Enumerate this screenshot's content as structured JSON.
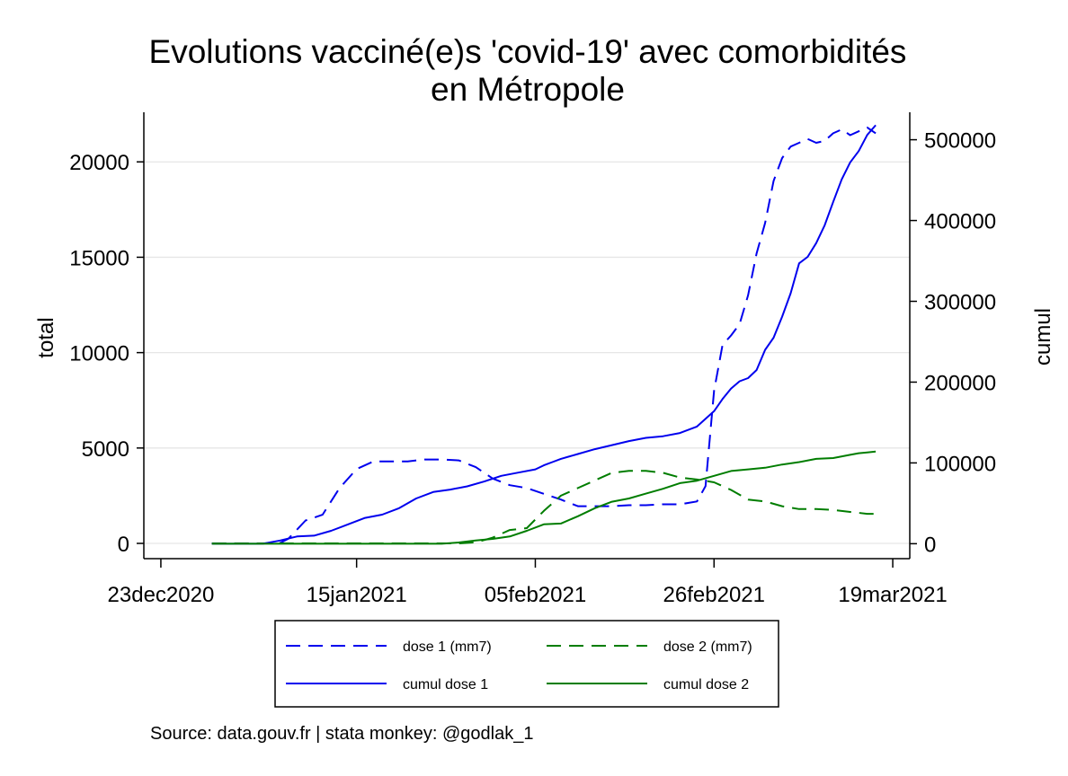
{
  "chart_data": {
    "type": "line",
    "title_lines": [
      "Evolutions vacciné(e)s 'covid-19' avec comorbidités",
      "en Métropole"
    ],
    "ylabel_left": "total",
    "ylabel_right": "cumul",
    "x_ticks": [
      "23dec2020",
      "15jan2021",
      "05feb2021",
      "26feb2021",
      "19mar2021"
    ],
    "x_tick_dates": [
      "2020-12-23",
      "2021-01-15",
      "2021-02-05",
      "2021-02-26",
      "2021-03-19"
    ],
    "xlim": [
      "2020-12-21",
      "2021-03-21"
    ],
    "y_left_ticks": [
      0,
      5000,
      10000,
      15000,
      20000
    ],
    "y_left_lim": [
      -800,
      22600
    ],
    "y_right_ticks": [
      0,
      100000,
      200000,
      300000,
      400000,
      500000
    ],
    "y_right_lim": [
      -18500,
      534000
    ],
    "grid": true,
    "legend_position": "bottom",
    "series": [
      {
        "name": "dose 1 (mm7)",
        "axis": "left",
        "style": "dashed",
        "color": "#0000ee",
        "x": [
          "2020-12-29",
          "2021-01-01",
          "2021-01-04",
          "2021-01-06",
          "2021-01-07",
          "2021-01-09",
          "2021-01-11",
          "2021-01-13",
          "2021-01-15",
          "2021-01-17",
          "2021-01-19",
          "2021-01-21",
          "2021-01-23",
          "2021-01-25",
          "2021-01-27",
          "2021-01-29",
          "2021-01-31",
          "2021-02-02",
          "2021-02-04",
          "2021-02-06",
          "2021-02-08",
          "2021-02-10",
          "2021-02-12",
          "2021-02-14",
          "2021-02-16",
          "2021-02-18",
          "2021-02-20",
          "2021-02-22",
          "2021-02-24",
          "2021-02-25",
          "2021-02-26",
          "2021-02-27",
          "2021-02-28",
          "2021-03-01",
          "2021-03-02",
          "2021-03-03",
          "2021-03-04",
          "2021-03-05",
          "2021-03-06",
          "2021-03-07",
          "2021-03-08",
          "2021-03-09",
          "2021-03-10",
          "2021-03-11",
          "2021-03-12",
          "2021-03-13",
          "2021-03-14",
          "2021-03-15",
          "2021-03-16",
          "2021-03-17"
        ],
        "y": [
          0,
          0,
          0,
          20,
          250,
          1200,
          1500,
          2900,
          3900,
          4300,
          4300,
          4300,
          4400,
          4400,
          4350,
          4000,
          3400,
          3050,
          2900,
          2600,
          2300,
          1950,
          1950,
          1950,
          2000,
          2000,
          2050,
          2050,
          2200,
          3000,
          8000,
          10400,
          10900,
          11500,
          13000,
          15200,
          16800,
          19000,
          20200,
          20800,
          21000,
          21200,
          21000,
          21100,
          21500,
          21700,
          21400,
          21600,
          21800,
          21500
        ]
      },
      {
        "name": "dose 2 (mm7)",
        "axis": "left",
        "style": "dashed",
        "color": "#007d00",
        "x": [
          "2020-12-29",
          "2021-01-15",
          "2021-01-25",
          "2021-01-27",
          "2021-01-29",
          "2021-01-31",
          "2021-02-02",
          "2021-02-04",
          "2021-02-06",
          "2021-02-08",
          "2021-02-10",
          "2021-02-12",
          "2021-02-14",
          "2021-02-16",
          "2021-02-18",
          "2021-02-20",
          "2021-02-22",
          "2021-02-24",
          "2021-02-26",
          "2021-02-28",
          "2021-03-02",
          "2021-03-04",
          "2021-03-06",
          "2021-03-08",
          "2021-03-10",
          "2021-03-12",
          "2021-03-14",
          "2021-03-15",
          "2021-03-16",
          "2021-03-17"
        ],
        "y": [
          0,
          0,
          0,
          0,
          50,
          300,
          700,
          800,
          1700,
          2500,
          2900,
          3300,
          3700,
          3800,
          3800,
          3700,
          3450,
          3350,
          3200,
          2800,
          2300,
          2200,
          1950,
          1800,
          1800,
          1750,
          1650,
          1600,
          1550,
          1550
        ]
      },
      {
        "name": "cumul dose 1",
        "axis": "right",
        "style": "solid",
        "color": "#0000ee",
        "x": [
          "2020-12-29",
          "2021-01-01",
          "2021-01-04",
          "2021-01-06",
          "2021-01-08",
          "2021-01-10",
          "2021-01-12",
          "2021-01-14",
          "2021-01-16",
          "2021-01-18",
          "2021-01-20",
          "2021-01-22",
          "2021-01-24",
          "2021-01-26",
          "2021-01-28",
          "2021-01-30",
          "2021-02-01",
          "2021-02-03",
          "2021-02-05",
          "2021-02-06",
          "2021-02-07",
          "2021-02-08",
          "2021-02-10",
          "2021-02-12",
          "2021-02-14",
          "2021-02-16",
          "2021-02-18",
          "2021-02-20",
          "2021-02-22",
          "2021-02-24",
          "2021-02-26",
          "2021-02-27",
          "2021-02-28",
          "2021-03-01",
          "2021-03-02",
          "2021-03-03",
          "2021-03-04",
          "2021-03-05",
          "2021-03-06",
          "2021-03-07",
          "2021-03-08",
          "2021-03-09",
          "2021-03-10",
          "2021-03-11",
          "2021-03-12",
          "2021-03-13",
          "2021-03-14",
          "2021-03-15",
          "2021-03-16",
          "2021-03-17"
        ],
        "y": [
          0,
          0,
          0,
          4000,
          9000,
          10000,
          16000,
          24000,
          32000,
          36000,
          44000,
          56000,
          64000,
          67000,
          71000,
          77000,
          84000,
          88000,
          92000,
          97000,
          101000,
          105000,
          111000,
          117000,
          122000,
          127000,
          131000,
          133000,
          137000,
          145000,
          164000,
          179000,
          192000,
          201000,
          205000,
          215000,
          240000,
          255000,
          281000,
          310000,
          347000,
          355000,
          372000,
          394000,
          423000,
          451000,
          472000,
          486000,
          506000,
          518000
        ]
      },
      {
        "name": "cumul dose 2",
        "axis": "right",
        "style": "solid",
        "color": "#007d00",
        "x": [
          "2020-12-29",
          "2021-01-15",
          "2021-01-25",
          "2021-01-27",
          "2021-01-29",
          "2021-01-31",
          "2021-02-02",
          "2021-02-04",
          "2021-02-06",
          "2021-02-08",
          "2021-02-10",
          "2021-02-12",
          "2021-02-14",
          "2021-02-16",
          "2021-02-18",
          "2021-02-20",
          "2021-02-22",
          "2021-02-24",
          "2021-02-26",
          "2021-02-28",
          "2021-03-02",
          "2021-03-04",
          "2021-03-06",
          "2021-03-08",
          "2021-03-10",
          "2021-03-12",
          "2021-03-14",
          "2021-03-15",
          "2021-03-16",
          "2021-03-17"
        ],
        "y": [
          0,
          0,
          0,
          1500,
          4000,
          6000,
          9000,
          16000,
          24000,
          25000,
          34000,
          44000,
          52000,
          56000,
          62000,
          68000,
          75000,
          78000,
          84000,
          90000,
          92000,
          94000,
          98000,
          101000,
          105000,
          106000,
          110000,
          112000,
          113000,
          114000
        ]
      }
    ]
  },
  "legend": {
    "items": [
      {
        "label": "dose 1 (mm7)",
        "color": "#0000ee",
        "style": "dashed"
      },
      {
        "label": "dose 2 (mm7)",
        "color": "#007d00",
        "style": "dashed"
      },
      {
        "label": "cumul dose 1",
        "color": "#0000ee",
        "style": "solid"
      },
      {
        "label": "cumul dose 2",
        "color": "#007d00",
        "style": "solid"
      }
    ]
  },
  "source": "Source: data.gouv.fr | stata monkey: @godlak_1"
}
